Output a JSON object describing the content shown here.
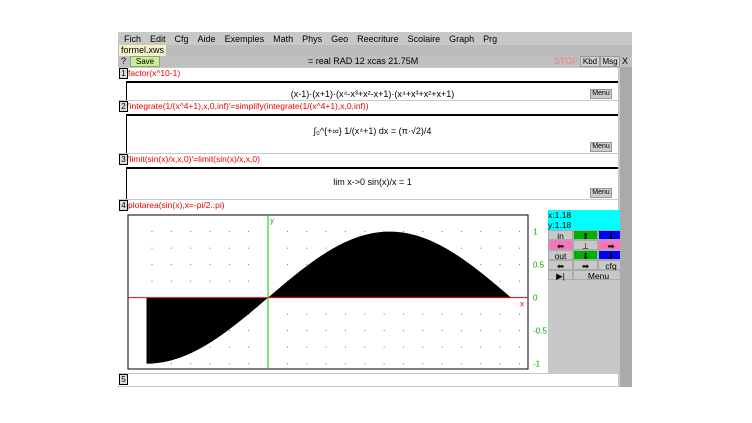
{
  "menu": [
    "Fich",
    "Edit",
    "Cfg",
    "Aide",
    "Exemples",
    "Math",
    "Phys",
    "Geo",
    "Reecriture",
    "Scolaire",
    "Graph",
    "Prg"
  ],
  "tab": "formel.xws",
  "toolbar": {
    "help": "?",
    "save": "Save",
    "status": "= real RAD 12 xcas 21.75M",
    "stop": "STOP",
    "kbd": "Kbd",
    "msg": "Msg",
    "close": "X"
  },
  "colors": {
    "command": "#e00000",
    "save_bg": "#c8f08c",
    "coord_bg": "#00ffff",
    "green": "#00b000",
    "blue": "#0000ff",
    "pink": "#ff70c0"
  },
  "levels": [
    {
      "n": "1",
      "cmd": "factor(x^10-1)",
      "out": "(x-1)·(x+1)·(x⁴-x³+x²-x+1)·(x⁴+x³+x²+x+1)",
      "menu": "Menu"
    },
    {
      "n": "2",
      "cmd": "'integrate(1/(x^4+1),x,0,inf)'=simplify(integrate(1/(x^4+1),x,0,inf))",
      "out": "∫₀^{+∞} 1/(x⁴+1) dx = (π·√2)/4",
      "menu": "Menu"
    },
    {
      "n": "3",
      "cmd": "'limit(sin(x)/x,x,0)'=limit(sin(x)/x,x,0)",
      "out": "lim x->0 sin(x)/x = 1",
      "menu": "Menu"
    },
    {
      "n": "4",
      "cmd": "plotarea(sin(x),x=-pi/2..pi)"
    },
    {
      "n": "5"
    }
  ],
  "plot": {
    "coords": {
      "x": "x:1.18",
      "y": "y:1.18"
    },
    "buttons": {
      "in": "in",
      "out": "out",
      "cfg": "cfg",
      "menu": "Menu"
    }
  },
  "chart_data": {
    "type": "area",
    "function": "sin(x)",
    "x_range": [
      -1.5708,
      3.1416
    ],
    "xlim": [
      -1.81,
      3.36
    ],
    "ylim": [
      -1.05,
      1.1
    ],
    "xticks": [
      "-1",
      "0",
      "1",
      "2",
      "3"
    ],
    "yticks": [
      "1",
      "0.5",
      "0",
      "-0.5",
      "-1"
    ],
    "xlabel": "x",
    "ylabel": "y",
    "grid": "dotted"
  }
}
